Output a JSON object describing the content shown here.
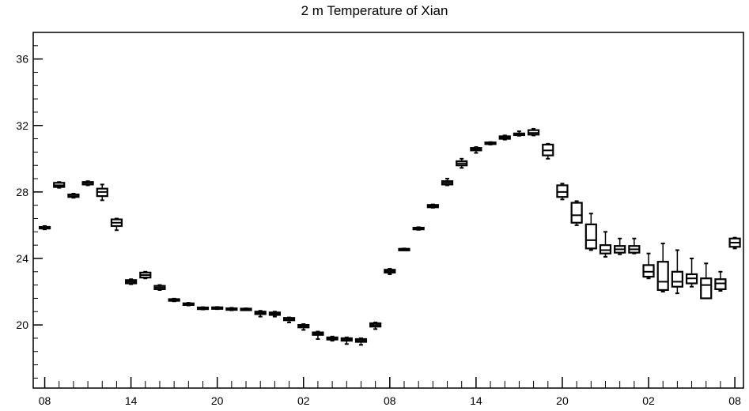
{
  "chart_data": {
    "type": "box",
    "title": "2 m Temperature of Xian",
    "xlabel": "",
    "ylabel": "",
    "ylim": [
      16.2,
      37.6
    ],
    "yticks": [
      20,
      24,
      28,
      32,
      36
    ],
    "yticks_minor_step": 0.8,
    "xticks_labels": [
      "08",
      "14",
      "20",
      "02",
      "08",
      "14",
      "20",
      "02",
      "08"
    ],
    "x_range_hours": [
      -0.8,
      48.6
    ],
    "grid": false,
    "box_color": "#000000",
    "series": [
      {
        "t": 0,
        "q1": 25.8,
        "median": 25.85,
        "q3": 25.9,
        "whisk_low": 25.75,
        "whisk_high": 25.95
      },
      {
        "t": 1,
        "q1": 28.3,
        "median": 28.4,
        "q3": 28.55,
        "whisk_low": 28.25,
        "whisk_high": 28.6
      },
      {
        "t": 2,
        "q1": 27.7,
        "median": 27.75,
        "q3": 27.85,
        "whisk_low": 27.65,
        "whisk_high": 27.9
      },
      {
        "t": 3,
        "q1": 28.45,
        "median": 28.55,
        "q3": 28.6,
        "whisk_low": 28.4,
        "whisk_high": 28.65
      },
      {
        "t": 4,
        "q1": 27.75,
        "median": 28.0,
        "q3": 28.2,
        "whisk_low": 27.5,
        "whisk_high": 28.45
      },
      {
        "t": 5,
        "q1": 25.95,
        "median": 26.15,
        "q3": 26.35,
        "whisk_low": 25.7,
        "whisk_high": 26.4
      },
      {
        "t": 6,
        "q1": 22.5,
        "median": 22.6,
        "q3": 22.7,
        "whisk_low": 22.45,
        "whisk_high": 22.75
      },
      {
        "t": 7,
        "q1": 22.85,
        "median": 23.0,
        "q3": 23.15,
        "whisk_low": 22.8,
        "whisk_high": 23.2
      },
      {
        "t": 8,
        "q1": 22.15,
        "median": 22.25,
        "q3": 22.35,
        "whisk_low": 22.1,
        "whisk_high": 22.4
      },
      {
        "t": 9,
        "q1": 21.45,
        "median": 21.5,
        "q3": 21.55,
        "whisk_low": 21.42,
        "whisk_high": 21.58
      },
      {
        "t": 10,
        "q1": 21.2,
        "median": 21.25,
        "q3": 21.3,
        "whisk_low": 21.17,
        "whisk_high": 21.33
      },
      {
        "t": 11,
        "q1": 20.95,
        "median": 21.0,
        "q3": 21.05,
        "whisk_low": 20.93,
        "whisk_high": 21.07
      },
      {
        "t": 12,
        "q1": 20.98,
        "median": 21.02,
        "q3": 21.06,
        "whisk_low": 20.95,
        "whisk_high": 21.08
      },
      {
        "t": 13,
        "q1": 20.92,
        "median": 20.96,
        "q3": 21.0,
        "whisk_low": 20.88,
        "whisk_high": 21.03
      },
      {
        "t": 14,
        "q1": 20.92,
        "median": 20.95,
        "q3": 20.98,
        "whisk_low": 20.9,
        "whisk_high": 21.0
      },
      {
        "t": 15,
        "q1": 20.65,
        "median": 20.72,
        "q3": 20.8,
        "whisk_low": 20.5,
        "whisk_high": 20.85
      },
      {
        "t": 16,
        "q1": 20.6,
        "median": 20.67,
        "q3": 20.75,
        "whisk_low": 20.5,
        "whisk_high": 20.8
      },
      {
        "t": 17,
        "q1": 20.28,
        "median": 20.33,
        "q3": 20.42,
        "whisk_low": 20.15,
        "whisk_high": 20.45
      },
      {
        "t": 18,
        "q1": 19.85,
        "median": 19.93,
        "q3": 20.0,
        "whisk_low": 19.7,
        "whisk_high": 20.05
      },
      {
        "t": 19,
        "q1": 19.4,
        "median": 19.48,
        "q3": 19.55,
        "whisk_low": 19.15,
        "whisk_high": 19.6
      },
      {
        "t": 20,
        "q1": 19.12,
        "median": 19.18,
        "q3": 19.25,
        "whisk_low": 19.05,
        "whisk_high": 19.3
      },
      {
        "t": 21,
        "q1": 19.05,
        "median": 19.12,
        "q3": 19.2,
        "whisk_low": 18.85,
        "whisk_high": 19.25
      },
      {
        "t": 22,
        "q1": 18.98,
        "median": 19.05,
        "q3": 19.15,
        "whisk_low": 18.8,
        "whisk_high": 19.2
      },
      {
        "t": 23,
        "q1": 19.9,
        "median": 20.0,
        "q3": 20.1,
        "whisk_low": 19.75,
        "whisk_high": 20.15
      },
      {
        "t": 24,
        "q1": 23.15,
        "median": 23.23,
        "q3": 23.32,
        "whisk_low": 23.05,
        "whisk_high": 23.38
      },
      {
        "t": 25,
        "q1": 24.52,
        "median": 24.55,
        "q3": 24.58,
        "whisk_low": 24.5,
        "whisk_high": 24.6
      },
      {
        "t": 26,
        "q1": 25.75,
        "median": 25.8,
        "q3": 25.85,
        "whisk_low": 25.72,
        "whisk_high": 25.88
      },
      {
        "t": 27,
        "q1": 27.08,
        "median": 27.15,
        "q3": 27.22,
        "whisk_low": 27.05,
        "whisk_high": 27.25
      },
      {
        "t": 28,
        "q1": 28.45,
        "median": 28.55,
        "q3": 28.65,
        "whisk_low": 28.4,
        "whisk_high": 28.8
      },
      {
        "t": 29,
        "q1": 29.6,
        "median": 29.72,
        "q3": 29.85,
        "whisk_low": 29.45,
        "whisk_high": 30.0
      },
      {
        "t": 30,
        "q1": 30.5,
        "median": 30.58,
        "q3": 30.65,
        "whisk_low": 30.35,
        "whisk_high": 30.7
      },
      {
        "t": 31,
        "q1": 30.88,
        "median": 30.93,
        "q3": 30.98,
        "whisk_low": 30.85,
        "whisk_high": 31.0
      },
      {
        "t": 32,
        "q1": 31.2,
        "median": 31.28,
        "q3": 31.35,
        "whisk_low": 31.15,
        "whisk_high": 31.4
      },
      {
        "t": 33,
        "q1": 31.42,
        "median": 31.47,
        "q3": 31.52,
        "whisk_low": 31.38,
        "whisk_high": 31.65
      },
      {
        "t": 34,
        "q1": 31.45,
        "median": 31.55,
        "q3": 31.72,
        "whisk_low": 31.4,
        "whisk_high": 31.8
      },
      {
        "t": 35,
        "q1": 30.2,
        "median": 30.5,
        "q3": 30.85,
        "whisk_low": 30.0,
        "whisk_high": 30.9
      },
      {
        "t": 36,
        "q1": 27.7,
        "median": 28.0,
        "q3": 28.4,
        "whisk_low": 27.55,
        "whisk_high": 28.5
      },
      {
        "t": 37,
        "q1": 26.15,
        "median": 26.6,
        "q3": 27.35,
        "whisk_low": 26.0,
        "whisk_high": 27.45
      },
      {
        "t": 38,
        "q1": 24.6,
        "median": 25.1,
        "q3": 26.05,
        "whisk_low": 24.5,
        "whisk_high": 26.7
      },
      {
        "t": 39,
        "q1": 24.3,
        "median": 24.5,
        "q3": 24.8,
        "whisk_low": 24.1,
        "whisk_high": 25.6
      },
      {
        "t": 40,
        "q1": 24.35,
        "median": 24.55,
        "q3": 24.75,
        "whisk_low": 24.25,
        "whisk_high": 25.2
      },
      {
        "t": 41,
        "q1": 24.35,
        "median": 24.55,
        "q3": 24.75,
        "whisk_low": 24.3,
        "whisk_high": 25.2
      },
      {
        "t": 42,
        "q1": 22.9,
        "median": 23.2,
        "q3": 23.6,
        "whisk_low": 22.8,
        "whisk_high": 24.3
      },
      {
        "t": 43,
        "q1": 22.1,
        "median": 22.6,
        "q3": 23.8,
        "whisk_low": 22.0,
        "whisk_high": 24.9
      },
      {
        "t": 44,
        "q1": 22.3,
        "median": 22.6,
        "q3": 23.2,
        "whisk_low": 21.9,
        "whisk_high": 24.5
      },
      {
        "t": 45,
        "q1": 22.5,
        "median": 22.8,
        "q3": 23.05,
        "whisk_low": 22.3,
        "whisk_high": 24.0
      },
      {
        "t": 46,
        "q1": 21.6,
        "median": 22.4,
        "q3": 22.8,
        "whisk_low": 21.6,
        "whisk_high": 23.7
      },
      {
        "t": 47,
        "q1": 22.15,
        "median": 22.5,
        "q3": 22.75,
        "whisk_low": 22.05,
        "whisk_high": 23.2
      },
      {
        "t": 48,
        "q1": 24.7,
        "median": 24.95,
        "q3": 25.2,
        "whisk_low": 24.6,
        "whisk_high": 25.25
      }
    ]
  }
}
